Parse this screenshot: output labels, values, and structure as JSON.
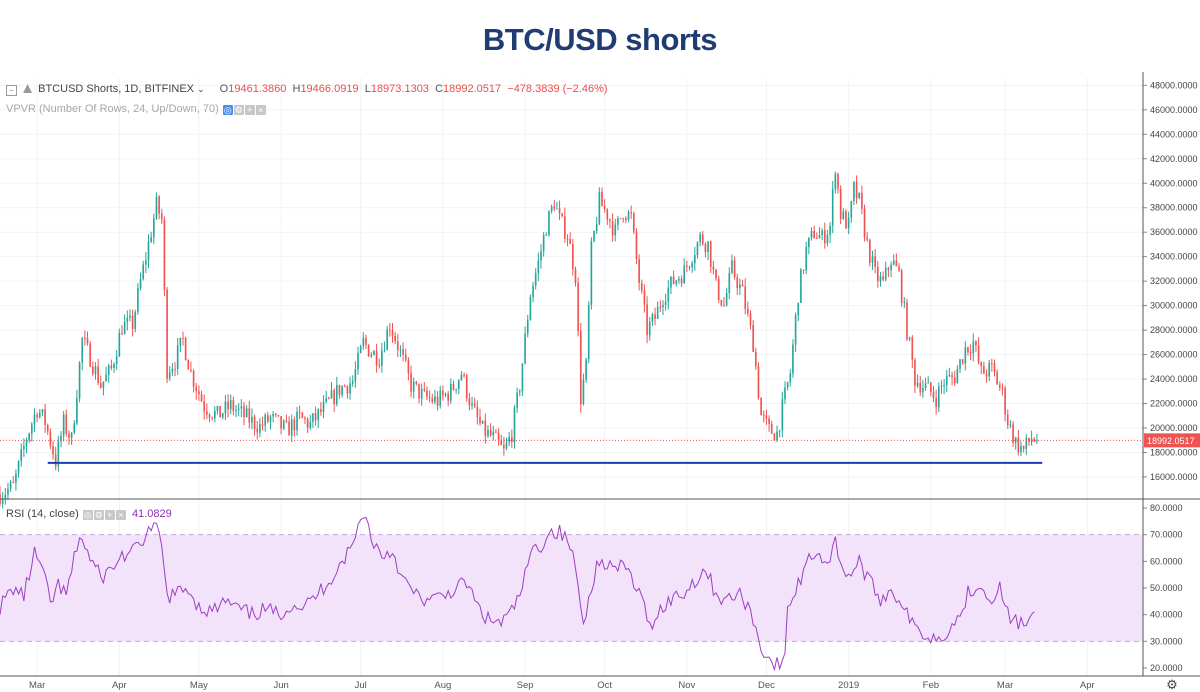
{
  "title": "BTC/USD shorts",
  "legend": {
    "symbol": "BTCUSD Shorts, 1D, BITFINEX",
    "o_label": "O",
    "o": "19461.3860",
    "h_label": "H",
    "h": "19466.0919",
    "l_label": "L",
    "l": "18973.1303",
    "c_label": "C",
    "c": "18992.0517",
    "change": "−478.3839 (−2.46%)",
    "vpvr": "VPVR (Number Of Rows, 24, Up/Down, 70)",
    "rsi": "RSI (14, close)",
    "rsi_value": "41.0829"
  },
  "colors": {
    "up": "#26a69a",
    "down": "#ef5350",
    "support": "#1a3fb0",
    "rsi": "#9b3fc2",
    "rsi_band": "#f2e3fb",
    "last_price_label": "#ef5350"
  },
  "chart_data": {
    "type": "candlestick",
    "price_axis": {
      "ticks": [
        "16000.0000",
        "18000.0000",
        "20000.0000",
        "22000.0000",
        "24000.0000",
        "26000.0000",
        "28000.0000",
        "30000.0000",
        "32000.0000",
        "34000.0000",
        "36000.0000",
        "38000.0000",
        "40000.0000",
        "42000.0000",
        "44000.0000",
        "46000.0000",
        "48000.0000"
      ],
      "ylim": [
        14200,
        48600
      ]
    },
    "x_axis": {
      "labels": [
        "Mar",
        "Apr",
        "May",
        "Jun",
        "Jul",
        "Aug",
        "Sep",
        "Oct",
        "Nov",
        "Dec",
        "2019",
        "Feb",
        "Mar",
        "Apr"
      ],
      "xlim": [
        "2018-02-15",
        "2019-04-22"
      ]
    },
    "last_price": "18992.0517",
    "support_level": 17150,
    "anchors": [
      [
        "2018-02-15",
        14600
      ],
      [
        "2018-02-20",
        15200
      ],
      [
        "2018-02-25",
        19200
      ],
      [
        "2018-03-01",
        21600
      ],
      [
        "2018-03-04",
        20500
      ],
      [
        "2018-03-08",
        17300
      ],
      [
        "2018-03-11",
        20400
      ],
      [
        "2018-03-14",
        19000
      ],
      [
        "2018-03-18",
        27200
      ],
      [
        "2018-03-21",
        25800
      ],
      [
        "2018-03-25",
        23500
      ],
      [
        "2018-03-29",
        24800
      ],
      [
        "2018-04-02",
        28300
      ],
      [
        "2018-04-06",
        28500
      ],
      [
        "2018-04-09",
        32000
      ],
      [
        "2018-04-12",
        35000
      ],
      [
        "2018-04-15",
        38200
      ],
      [
        "2018-04-17",
        37000
      ],
      [
        "2018-04-19",
        24800
      ],
      [
        "2018-04-22",
        25500
      ],
      [
        "2018-04-25",
        27200
      ],
      [
        "2018-04-28",
        24500
      ],
      [
        "2018-05-03",
        21800
      ],
      [
        "2018-05-08",
        21000
      ],
      [
        "2018-05-13",
        21800
      ],
      [
        "2018-05-18",
        21000
      ],
      [
        "2018-05-24",
        20100
      ],
      [
        "2018-05-28",
        20800
      ],
      [
        "2018-06-03",
        19800
      ],
      [
        "2018-06-08",
        20800
      ],
      [
        "2018-06-12",
        20300
      ],
      [
        "2018-06-18",
        21800
      ],
      [
        "2018-06-23",
        23200
      ],
      [
        "2018-06-28",
        23800
      ],
      [
        "2018-07-02",
        27000
      ],
      [
        "2018-07-05",
        26200
      ],
      [
        "2018-07-08",
        25800
      ],
      [
        "2018-07-12",
        28500
      ],
      [
        "2018-07-15",
        26800
      ],
      [
        "2018-07-20",
        23500
      ],
      [
        "2018-07-25",
        22500
      ],
      [
        "2018-07-30",
        22200
      ],
      [
        "2018-08-04",
        23000
      ],
      [
        "2018-08-08",
        24500
      ],
      [
        "2018-08-12",
        21600
      ],
      [
        "2018-08-16",
        19800
      ],
      [
        "2018-08-20",
        19200
      ],
      [
        "2018-08-24",
        18000
      ],
      [
        "2018-08-27",
        19600
      ],
      [
        "2018-08-30",
        23500
      ],
      [
        "2018-09-03",
        31000
      ],
      [
        "2018-09-06",
        33500
      ],
      [
        "2018-09-09",
        36500
      ],
      [
        "2018-09-12",
        38500
      ],
      [
        "2018-09-14",
        37000
      ],
      [
        "2018-09-17",
        35800
      ],
      [
        "2018-09-20",
        32500
      ],
      [
        "2018-09-22",
        22500
      ],
      [
        "2018-09-24",
        25000
      ],
      [
        "2018-09-26",
        34500
      ],
      [
        "2018-09-29",
        38500
      ],
      [
        "2018-10-02",
        37500
      ],
      [
        "2018-10-05",
        36000
      ],
      [
        "2018-10-08",
        37800
      ],
      [
        "2018-10-11",
        37200
      ],
      [
        "2018-10-14",
        32000
      ],
      [
        "2018-10-17",
        28000
      ],
      [
        "2018-10-20",
        29000
      ],
      [
        "2018-10-23",
        30800
      ],
      [
        "2018-10-27",
        32000
      ],
      [
        "2018-10-31",
        32800
      ],
      [
        "2018-11-03",
        34200
      ],
      [
        "2018-11-06",
        35500
      ],
      [
        "2018-11-09",
        35000
      ],
      [
        "2018-11-12",
        31500
      ],
      [
        "2018-11-15",
        30000
      ],
      [
        "2018-11-18",
        33000
      ],
      [
        "2018-11-22",
        31000
      ],
      [
        "2018-11-26",
        27000
      ],
      [
        "2018-11-29",
        21000
      ],
      [
        "2018-12-02",
        19800
      ],
      [
        "2018-12-05",
        19600
      ],
      [
        "2018-12-08",
        22600
      ],
      [
        "2018-12-10",
        24500
      ],
      [
        "2018-12-13",
        31000
      ],
      [
        "2018-12-16",
        34500
      ],
      [
        "2018-12-19",
        36000
      ],
      [
        "2018-12-22",
        35500
      ],
      [
        "2018-12-25",
        36500
      ],
      [
        "2018-12-27",
        41500
      ],
      [
        "2018-12-29",
        37500
      ],
      [
        "2019-01-01",
        36500
      ],
      [
        "2019-01-03",
        39500
      ],
      [
        "2019-01-05",
        38500
      ],
      [
        "2019-01-08",
        35000
      ],
      [
        "2019-01-11",
        32500
      ],
      [
        "2019-01-14",
        31800
      ],
      [
        "2019-01-17",
        33800
      ],
      [
        "2019-01-20",
        32500
      ],
      [
        "2019-01-23",
        28000
      ],
      [
        "2019-01-26",
        24000
      ],
      [
        "2019-01-30",
        23300
      ],
      [
        "2019-02-03",
        22500
      ],
      [
        "2019-02-06",
        23800
      ],
      [
        "2019-02-10",
        24200
      ],
      [
        "2019-02-14",
        26500
      ],
      [
        "2019-02-17",
        27000
      ],
      [
        "2019-02-20",
        24500
      ],
      [
        "2019-02-24",
        24800
      ],
      [
        "2019-02-28",
        22800
      ],
      [
        "2019-03-02",
        20600
      ],
      [
        "2019-03-05",
        18800
      ],
      [
        "2019-03-08",
        18200
      ],
      [
        "2019-03-11",
        19200
      ],
      [
        "2019-03-13",
        18992
      ]
    ],
    "rsi": {
      "type": "line",
      "name": "RSI (14, close)",
      "ticks": [
        "20.0000",
        "30.0000",
        "40.0000",
        "50.0000",
        "60.0000",
        "70.0000",
        "80.0000"
      ],
      "ylim": [
        17,
        83
      ],
      "band": [
        30,
        70
      ],
      "current": 41.0829,
      "anchors": [
        [
          "2018-02-15",
          43
        ],
        [
          "2018-02-20",
          50
        ],
        [
          "2018-02-24",
          47
        ],
        [
          "2018-02-28",
          63
        ],
        [
          "2018-03-03",
          57
        ],
        [
          "2018-03-06",
          44
        ],
        [
          "2018-03-09",
          51
        ],
        [
          "2018-03-12",
          47
        ],
        [
          "2018-03-17",
          70
        ],
        [
          "2018-03-21",
          61
        ],
        [
          "2018-03-25",
          54
        ],
        [
          "2018-03-29",
          57
        ],
        [
          "2018-04-02",
          62
        ],
        [
          "2018-04-07",
          64
        ],
        [
          "2018-04-12",
          71
        ],
        [
          "2018-04-16",
          72
        ],
        [
          "2018-04-19",
          47
        ],
        [
          "2018-04-23",
          48
        ],
        [
          "2018-04-27",
          50
        ],
        [
          "2018-05-01",
          43
        ],
        [
          "2018-05-06",
          41
        ],
        [
          "2018-05-11",
          45
        ],
        [
          "2018-05-16",
          42
        ],
        [
          "2018-05-21",
          40
        ],
        [
          "2018-05-26",
          42
        ],
        [
          "2018-05-31",
          40
        ],
        [
          "2018-06-05",
          44
        ],
        [
          "2018-06-10",
          43
        ],
        [
          "2018-06-15",
          48
        ],
        [
          "2018-06-20",
          54
        ],
        [
          "2018-06-24",
          60
        ],
        [
          "2018-06-28",
          66
        ],
        [
          "2018-07-02",
          79
        ],
        [
          "2018-07-05",
          69
        ],
        [
          "2018-07-09",
          62
        ],
        [
          "2018-07-13",
          64
        ],
        [
          "2018-07-17",
          53
        ],
        [
          "2018-07-22",
          47
        ],
        [
          "2018-07-27",
          45
        ],
        [
          "2018-08-01",
          47
        ],
        [
          "2018-08-06",
          50
        ],
        [
          "2018-08-10",
          52
        ],
        [
          "2018-08-14",
          43
        ],
        [
          "2018-08-18",
          38
        ],
        [
          "2018-08-23",
          37
        ],
        [
          "2018-08-27",
          41
        ],
        [
          "2018-08-31",
          50
        ],
        [
          "2018-09-03",
          63
        ],
        [
          "2018-09-07",
          66
        ],
        [
          "2018-09-10",
          71
        ],
        [
          "2018-09-14",
          71
        ],
        [
          "2018-09-18",
          66
        ],
        [
          "2018-09-21",
          52
        ],
        [
          "2018-09-23",
          35
        ],
        [
          "2018-09-25",
          48
        ],
        [
          "2018-09-28",
          58
        ],
        [
          "2018-10-01",
          60
        ],
        [
          "2018-10-05",
          57
        ],
        [
          "2018-10-09",
          58
        ],
        [
          "2018-10-14",
          48
        ],
        [
          "2018-10-18",
          36
        ],
        [
          "2018-10-22",
          42
        ],
        [
          "2018-10-26",
          46
        ],
        [
          "2018-10-31",
          48
        ],
        [
          "2018-11-04",
          53
        ],
        [
          "2018-11-08",
          57
        ],
        [
          "2018-11-12",
          48
        ],
        [
          "2018-11-16",
          45
        ],
        [
          "2018-11-20",
          48
        ],
        [
          "2018-11-24",
          44
        ],
        [
          "2018-11-29",
          28
        ],
        [
          "2018-12-03",
          22
        ],
        [
          "2018-12-06",
          21
        ],
        [
          "2018-12-08",
          23
        ],
        [
          "2018-12-09",
          44
        ],
        [
          "2018-12-12",
          48
        ],
        [
          "2018-12-16",
          60
        ],
        [
          "2018-12-20",
          64
        ],
        [
          "2018-12-24",
          59
        ],
        [
          "2018-12-27",
          67
        ],
        [
          "2018-12-30",
          57
        ],
        [
          "2019-01-02",
          55
        ],
        [
          "2019-01-05",
          60
        ],
        [
          "2019-01-09",
          52
        ],
        [
          "2019-01-13",
          46
        ],
        [
          "2019-01-17",
          49
        ],
        [
          "2019-01-21",
          45
        ],
        [
          "2019-01-25",
          36
        ],
        [
          "2019-01-29",
          33
        ],
        [
          "2019-02-03",
          31
        ],
        [
          "2019-02-07",
          34
        ],
        [
          "2019-02-11",
          38
        ],
        [
          "2019-02-15",
          48
        ],
        [
          "2019-02-19",
          52
        ],
        [
          "2019-02-23",
          46
        ],
        [
          "2019-02-27",
          50
        ],
        [
          "2019-03-02",
          40
        ],
        [
          "2019-03-06",
          37
        ],
        [
          "2019-03-09",
          36
        ],
        [
          "2019-03-12",
          41
        ]
      ]
    }
  }
}
